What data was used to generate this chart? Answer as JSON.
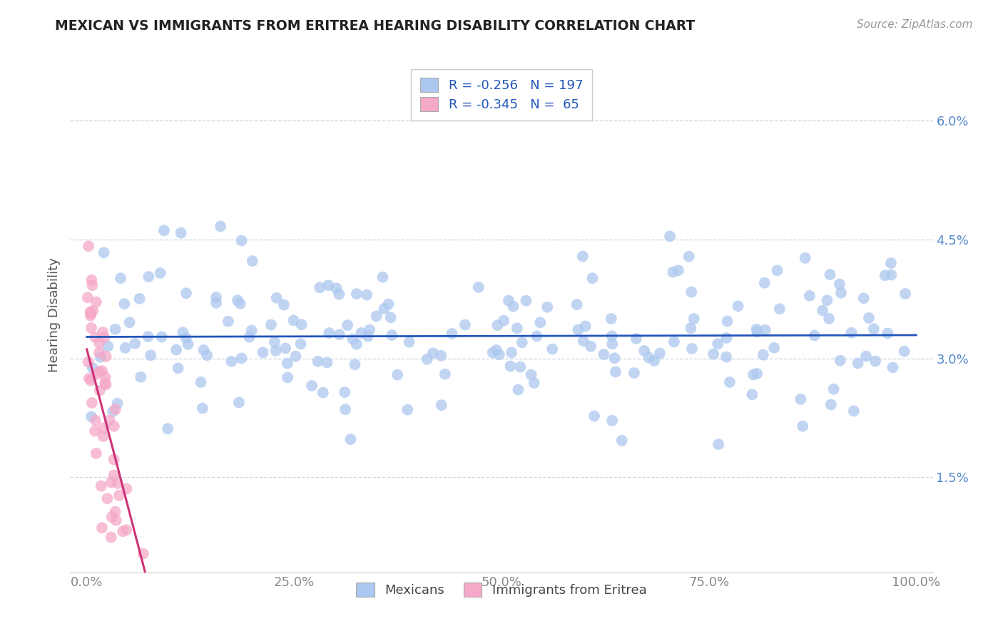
{
  "title": "MEXICAN VS IMMIGRANTS FROM ERITREA HEARING DISABILITY CORRELATION CHART",
  "source": "Source: ZipAtlas.com",
  "ylabel": "Hearing Disability",
  "r_blue": -0.256,
  "n_blue": 197,
  "r_pink": -0.345,
  "n_pink": 65,
  "blue_color": "#adc8f0",
  "pink_color": "#f5a8c8",
  "blue_line_color": "#2255bb",
  "pink_line_color": "#cc3377",
  "legend_blue_label": "Mexicans",
  "legend_pink_label": "Immigrants from Eritrea",
  "xlim": [
    -2,
    102
  ],
  "ylim": [
    0.3,
    6.8
  ],
  "yticks": [
    1.5,
    3.0,
    4.5,
    6.0
  ],
  "yticklabels": [
    "1.5%",
    "3.0%",
    "4.5%",
    "6.0%"
  ],
  "xticks": [
    0,
    25,
    50,
    75,
    100
  ],
  "xticklabels": [
    "0.0%",
    "25.0%",
    "50.0%",
    "75.0%",
    "100.0%"
  ],
  "background_color": "#ffffff",
  "seed_blue": 42,
  "seed_pink": 99
}
